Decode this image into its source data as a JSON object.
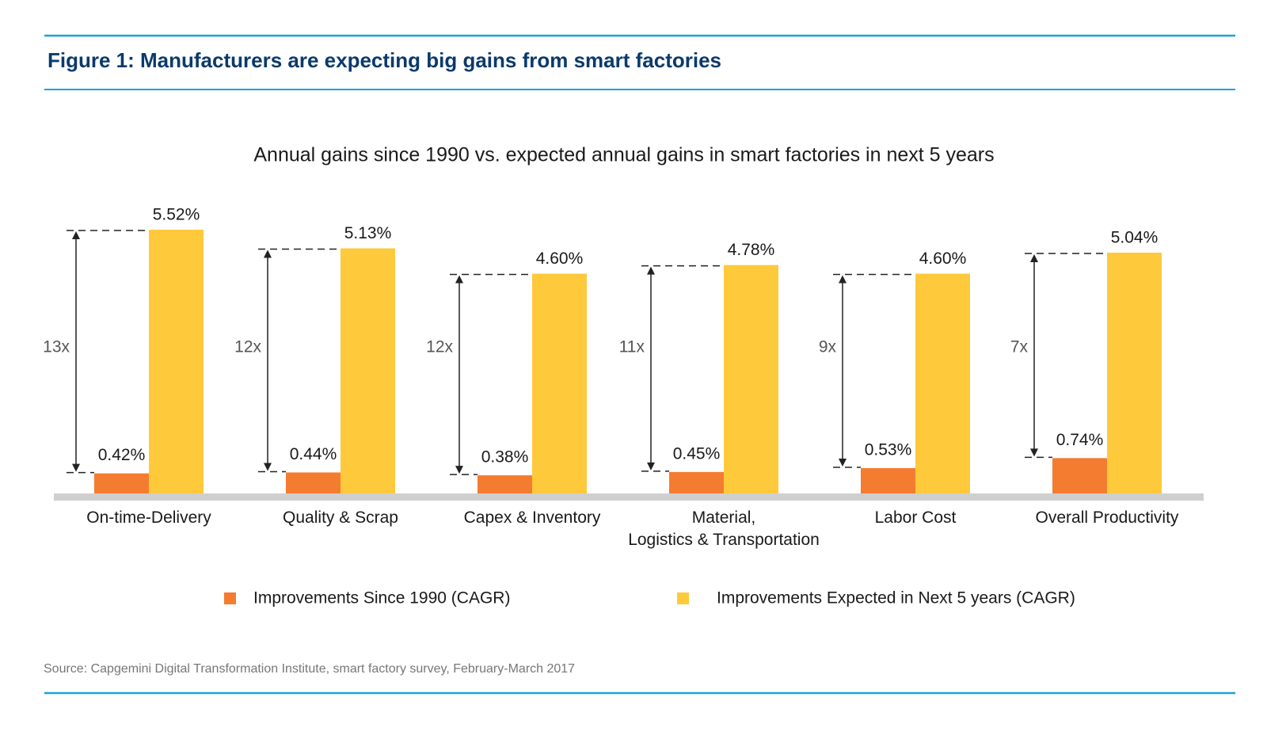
{
  "chart_data": {
    "type": "bar",
    "title": "Figure 1: Manufacturers are expecting big gains from smart factories",
    "subtitle": "Annual gains since 1990 vs. expected annual gains in smart factories in next 5 years",
    "categories": [
      "On-time-Delivery",
      "Quality & Scrap",
      "Capex & Inventory",
      "Material,\nLogistics & Transportation",
      "Labor Cost",
      "Overall Productivity"
    ],
    "series": [
      {
        "name": "Improvements Since 1990 (CAGR)",
        "color": "#f47c30",
        "values": [
          0.42,
          0.44,
          0.38,
          0.45,
          0.53,
          0.74
        ],
        "value_labels": [
          "0.42%",
          "0.44%",
          "0.38%",
          "0.45%",
          "0.53%",
          "0.74%"
        ]
      },
      {
        "name": "Improvements Expected in Next 5 years (CAGR)",
        "color": "#ffc93c",
        "values": [
          5.52,
          5.13,
          4.6,
          4.78,
          4.6,
          5.04
        ],
        "value_labels": [
          "5.52%",
          "5.13%",
          "4.60%",
          "4.78%",
          "4.60%",
          "5.04%"
        ]
      }
    ],
    "ratio_labels": [
      "13x",
      "12x",
      "12x",
      "11x",
      "9x",
      "7x"
    ],
    "source": "Source: Capgemini Digital Transformation Institute, smart factory survey, February-March 2017"
  }
}
